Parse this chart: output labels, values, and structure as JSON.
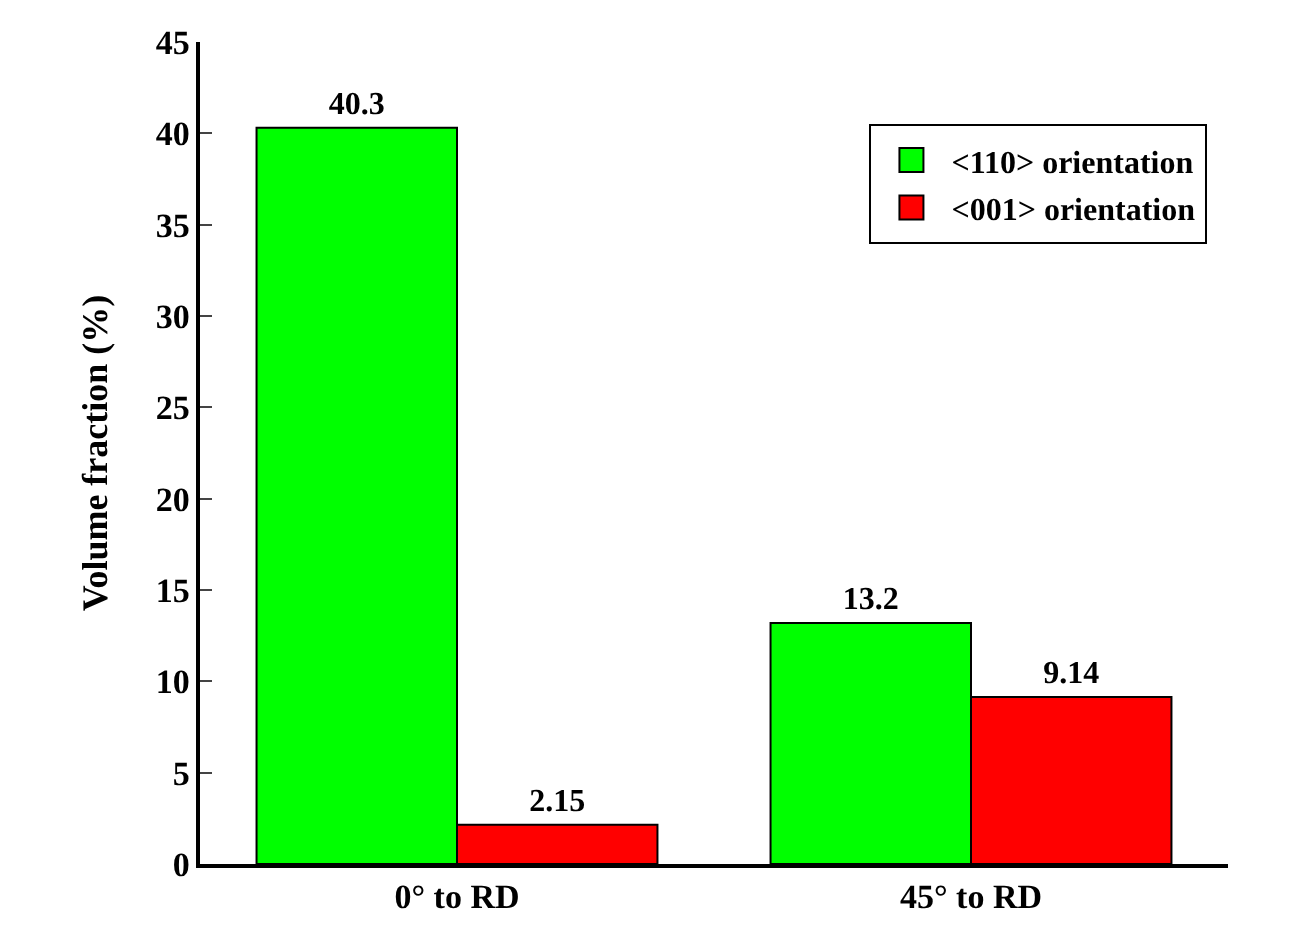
{
  "chart_data": {
    "type": "bar",
    "ylabel": "Volume fraction (%)",
    "categories": [
      "0° to RD",
      "45° to RD"
    ],
    "series": [
      {
        "name": "<110> orientation",
        "color": "#00ff00",
        "values": [
          40.3,
          13.2
        ]
      },
      {
        "name": "<001> orientation",
        "color": "#ff0000",
        "values": [
          2.15,
          9.14
        ]
      }
    ],
    "ylim": [
      0,
      45
    ],
    "yticks": [
      0,
      5,
      10,
      15,
      20,
      25,
      30,
      35,
      40,
      45
    ],
    "data_labels": true,
    "legend": "top right",
    "grid": false
  }
}
